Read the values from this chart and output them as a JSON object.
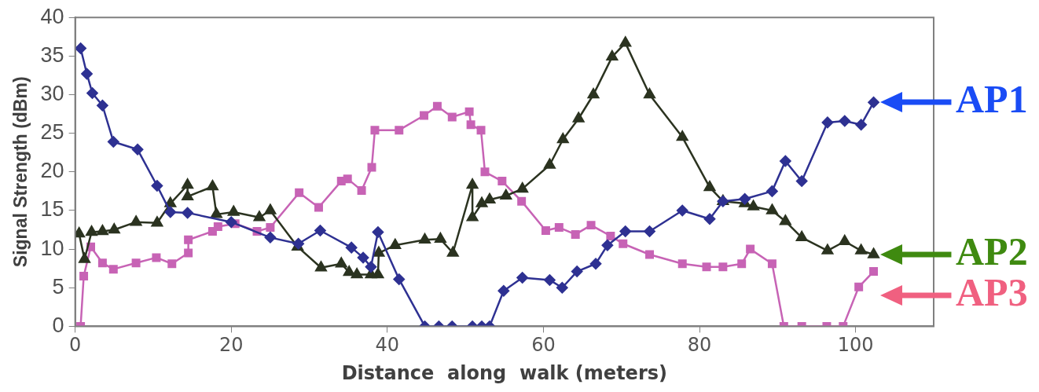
{
  "chart_data": {
    "type": "line",
    "xlabel": "Distance  along  walk (meters)",
    "ylabel": "Signal Strength (dBm)",
    "xlim": [
      0,
      110
    ],
    "xticks": [
      0,
      20,
      40,
      60,
      80,
      100
    ],
    "ylim": [
      0,
      40
    ],
    "yticks": [
      0,
      5,
      10,
      15,
      20,
      25,
      30,
      35,
      40
    ],
    "grid": false,
    "legend": false,
    "line_style": "solid",
    "series": [
      {
        "name": "AP1",
        "color": "#2e3192",
        "marker": "diamond",
        "x": [
          0.7,
          1.5,
          2.2,
          3.5,
          4.9,
          8,
          10.5,
          12.2,
          14.4,
          20,
          25,
          28.6,
          31.4,
          35.4,
          36.9,
          37.9,
          38.8,
          41.5,
          44.8,
          46.6,
          48.3,
          50.9,
          52.1,
          53.1,
          54.9,
          57.3,
          60.8,
          62.4,
          64.3,
          66.7,
          68.2,
          70.5,
          73.6,
          77.8,
          81.3,
          83,
          85.8,
          89.3,
          91,
          93.1,
          96.4,
          98.6,
          100.7,
          102.3
        ],
        "values": [
          36,
          32.7,
          30.2,
          28.6,
          23.9,
          22.9,
          18.2,
          14.8,
          14.7,
          13.5,
          11.5,
          10.7,
          12.4,
          10.2,
          8.9,
          7.7,
          12.2,
          6.1,
          0,
          0,
          0,
          0,
          0,
          0,
          4.6,
          6.3,
          6,
          5,
          7.1,
          8.1,
          10.5,
          12.3,
          12.3,
          15,
          13.9,
          16.2,
          16.5,
          17.5,
          21.4,
          18.8,
          26.4,
          26.6,
          26.1,
          29
        ]
      },
      {
        "name": "AP2",
        "color": "#2b3320",
        "marker": "triangle",
        "x": [
          0.5,
          1.2,
          2.1,
          3.5,
          5,
          7.8,
          10.5,
          12.2,
          14.4,
          14.4,
          17.6,
          18.1,
          20.3,
          23.6,
          25,
          28.5,
          31.5,
          34.1,
          35.1,
          36.1,
          37.9,
          38.8,
          38.9,
          41,
          44.8,
          46.8,
          48.4,
          50.9,
          50.9,
          52.1,
          53.1,
          55.2,
          57.3,
          60.8,
          62.5,
          64.5,
          66.4,
          68.8,
          70.5,
          73.6,
          77.8,
          81.3,
          83,
          85.8,
          86.9,
          89.3,
          91,
          93.1,
          96.4,
          98.6,
          100.7,
          102.3
        ],
        "values": [
          12,
          8.7,
          12.2,
          12.3,
          12.5,
          13.5,
          13.4,
          15.9,
          18.3,
          16.8,
          18.1,
          14.5,
          14.8,
          14.1,
          15,
          10.3,
          7.6,
          8.1,
          7,
          6.7,
          6.7,
          6.7,
          9.5,
          10.5,
          11.2,
          11.3,
          9.5,
          18.3,
          14.1,
          15.9,
          16.4,
          16.9,
          17.8,
          20.9,
          24.2,
          26.9,
          30,
          34.9,
          36.7,
          30,
          24.5,
          18,
          16.2,
          15.9,
          15.5,
          15,
          13.6,
          11.5,
          9.8,
          11,
          9.8,
          9.3
        ]
      },
      {
        "name": "AP3",
        "color": "#c763b5",
        "marker": "square",
        "x": [
          0.7,
          1.1,
          2,
          3.5,
          4.9,
          7.8,
          10.4,
          12.4,
          14.5,
          14.5,
          17.6,
          18.3,
          20.5,
          23.3,
          25,
          28.7,
          31.2,
          34.1,
          34.9,
          36.7,
          38,
          38.4,
          41.5,
          44.7,
          46.4,
          48.3,
          50.5,
          50.7,
          52,
          52.5,
          54.7,
          57.2,
          60.3,
          62,
          64.1,
          66.1,
          68.6,
          70.2,
          73.6,
          77.8,
          80.9,
          83,
          85.4,
          86.5,
          89.3,
          90.8,
          93.1,
          96.3,
          98.4,
          100.4,
          102.3
        ],
        "values": [
          0,
          6.5,
          10.3,
          8.2,
          7.4,
          8.2,
          8.9,
          8.1,
          9.5,
          11.2,
          12.3,
          12.9,
          13.3,
          12.3,
          12.8,
          17.3,
          15.4,
          18.8,
          19.1,
          17.6,
          20.6,
          25.4,
          25.4,
          27.3,
          28.5,
          27.1,
          27.8,
          26.1,
          25.4,
          20,
          18.8,
          16.2,
          12.4,
          12.8,
          11.9,
          13.1,
          11.7,
          10.7,
          9.3,
          8.1,
          7.7,
          7.7,
          8.1,
          10,
          8.1,
          0,
          0,
          0,
          0,
          5.1,
          7.1
        ]
      }
    ]
  }
}
